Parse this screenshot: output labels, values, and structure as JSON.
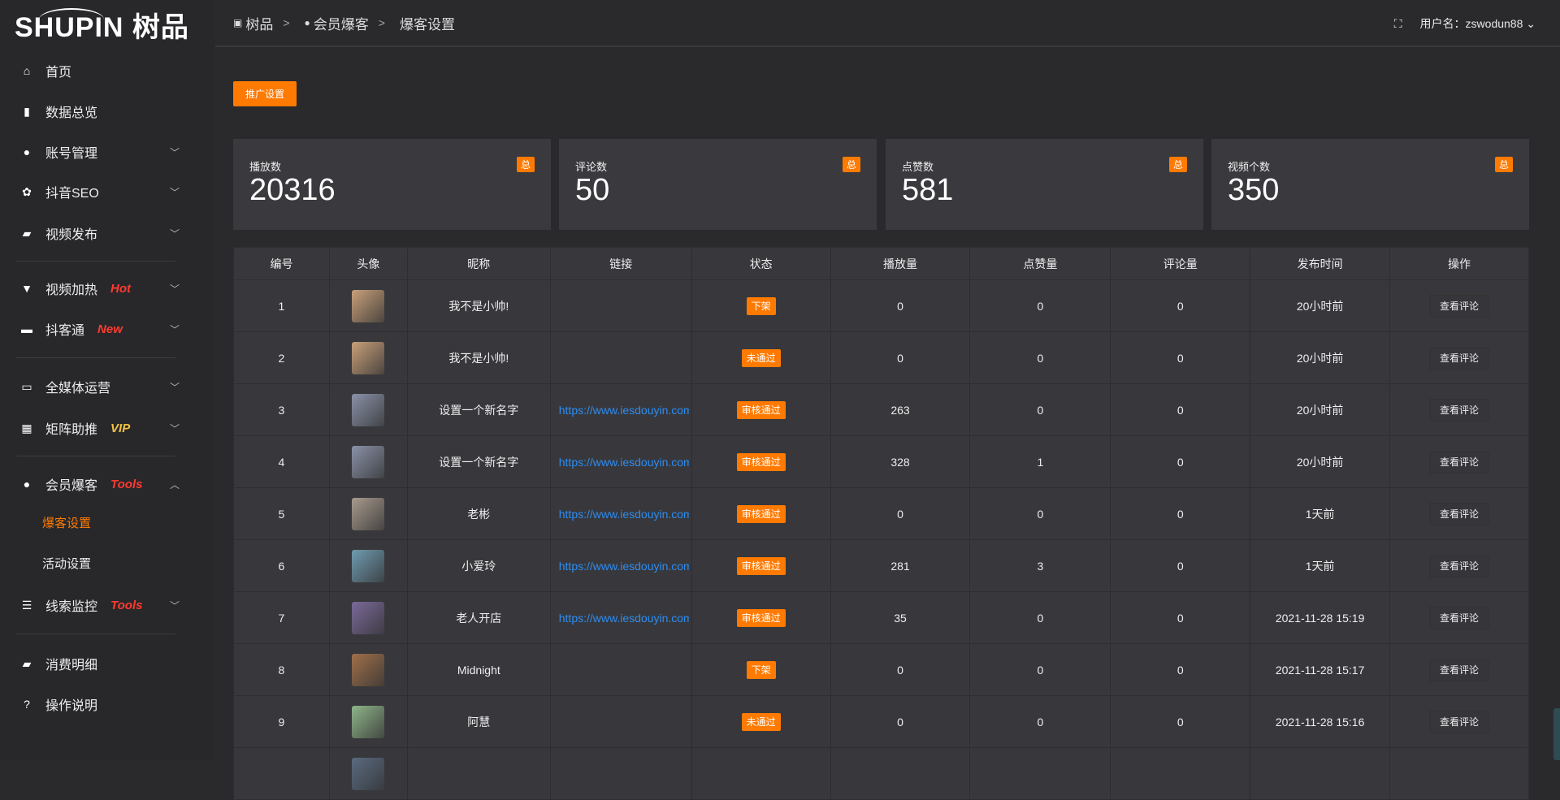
{
  "logo": {
    "text": "SHUPIN 树品"
  },
  "breadcrumb": [
    {
      "icon": "book-icon",
      "label": "树品"
    },
    {
      "icon": "user-icon",
      "label": "会员爆客"
    },
    {
      "label": "爆客设置"
    }
  ],
  "user": {
    "label": "用户名：zswodun88"
  },
  "sidebar": {
    "items": [
      {
        "icon": "home-icon",
        "glyph": "⌂",
        "label": "首页"
      },
      {
        "icon": "bar-chart-icon",
        "glyph": "▮",
        "label": "数据总览"
      },
      {
        "icon": "user-icon",
        "glyph": "●",
        "label": "账号管理",
        "chevron": "down"
      },
      {
        "icon": "gear-icon",
        "glyph": "✿",
        "label": "抖音SEO",
        "chevron": "down"
      },
      {
        "icon": "video-icon",
        "glyph": "▰",
        "label": "视频发布",
        "chevron": "down"
      },
      {
        "icon": "flame-board-icon",
        "glyph": "▼",
        "label": "视频加热",
        "tag": "Hot",
        "tag_color": "#ff3b30",
        "chevron": "down"
      },
      {
        "icon": "chat-icon",
        "glyph": "▬",
        "label": "抖客通",
        "tag": "New",
        "tag_color": "#ff3b30",
        "chevron": "down"
      },
      {
        "icon": "monitor-icon",
        "glyph": "▭",
        "label": "全媒体运营",
        "chevron": "down"
      },
      {
        "icon": "grid-icon",
        "glyph": "▦",
        "label": "矩阵助推",
        "tag": "VIP",
        "tag_color": "#f5c342",
        "chevron": "down"
      },
      {
        "icon": "user-icon",
        "glyph": "●",
        "label": "会员爆客",
        "tag": "Tools",
        "tag_color": "#ff3b30",
        "chevron": "up"
      },
      {
        "icon": "sliders-icon",
        "glyph": "☰",
        "label": "线索监控",
        "tag": "Tools",
        "tag_color": "#ff3b30",
        "chevron": "down"
      },
      {
        "icon": "wallet-icon",
        "glyph": "▰",
        "label": "消费明细"
      },
      {
        "icon": "help-icon",
        "glyph": "?",
        "label": "操作说明"
      }
    ],
    "sub_items": [
      {
        "label": "爆客设置",
        "active": true
      },
      {
        "label": "活动设置"
      }
    ]
  },
  "toolbar": {
    "promo_button": "推广设置"
  },
  "stats": [
    {
      "label": "播放数",
      "value": "20316",
      "badge": "总"
    },
    {
      "label": "评论数",
      "value": "50",
      "badge": "总"
    },
    {
      "label": "点赞数",
      "value": "581",
      "badge": "总"
    },
    {
      "label": "视频个数",
      "value": "350",
      "badge": "总"
    }
  ],
  "table": {
    "headers": [
      "编号",
      "头像",
      "昵称",
      "链接",
      "状态",
      "播放量",
      "点赞量",
      "评论量",
      "发布时间",
      "操作"
    ],
    "rows": [
      {
        "id": "1",
        "name": "我不是小帅!",
        "link": "",
        "status": "下架",
        "plays": "0",
        "likes": "0",
        "comments": "0",
        "time": "20小时前",
        "action": "查看评论",
        "avatar": "#c9a07a"
      },
      {
        "id": "2",
        "name": "我不是小帅!",
        "link": "",
        "status": "未通过",
        "plays": "0",
        "likes": "0",
        "comments": "0",
        "time": "20小时前",
        "action": "查看评论",
        "avatar": "#c9a07a"
      },
      {
        "id": "3",
        "name": "设置一个新名字",
        "link": "https://www.iesdouyin.com",
        "status": "审核通过",
        "plays": "263",
        "likes": "0",
        "comments": "0",
        "time": "20小时前",
        "action": "查看评论",
        "avatar": "#8a92a8"
      },
      {
        "id": "4",
        "name": "设置一个新名字",
        "link": "https://www.iesdouyin.com",
        "status": "审核通过",
        "plays": "328",
        "likes": "1",
        "comments": "0",
        "time": "20小时前",
        "action": "查看评论",
        "avatar": "#8a92a8"
      },
      {
        "id": "5",
        "name": "老彬",
        "link": "https://www.iesdouyin.com",
        "status": "审核通过",
        "plays": "0",
        "likes": "0",
        "comments": "0",
        "time": "1天前",
        "action": "查看评论",
        "avatar": "#a89a8e"
      },
      {
        "id": "6",
        "name": "小爱玲",
        "link": "https://www.iesdouyin.com",
        "status": "审核通过",
        "plays": "281",
        "likes": "3",
        "comments": "0",
        "time": "1天前",
        "action": "查看评论",
        "avatar": "#6f9bb0"
      },
      {
        "id": "7",
        "name": "老人开店",
        "link": "https://www.iesdouyin.com",
        "status": "审核通过",
        "plays": "35",
        "likes": "0",
        "comments": "0",
        "time": "2021-11-28 15:19",
        "action": "查看评论",
        "avatar": "#7a6a9a"
      },
      {
        "id": "8",
        "name": "Midnight",
        "link": "",
        "status": "下架",
        "plays": "0",
        "likes": "0",
        "comments": "0",
        "time": "2021-11-28 15:17",
        "action": "查看评论",
        "avatar": "#a0704a"
      },
      {
        "id": "9",
        "name": "阿慧",
        "link": "",
        "status": "未通过",
        "plays": "0",
        "likes": "0",
        "comments": "0",
        "time": "2021-11-28 15:16",
        "action": "查看评论",
        "avatar": "#8fb58a"
      },
      {
        "id": "",
        "name": "",
        "link": "",
        "status": "",
        "plays": "",
        "likes": "",
        "comments": "",
        "time": "",
        "action": "",
        "avatar": "#5a6a80"
      }
    ]
  },
  "colors": {
    "accent": "#ff7a00",
    "link": "#2d8cf0",
    "bg": "#2a2a2d",
    "card": "#3a3a3e"
  }
}
